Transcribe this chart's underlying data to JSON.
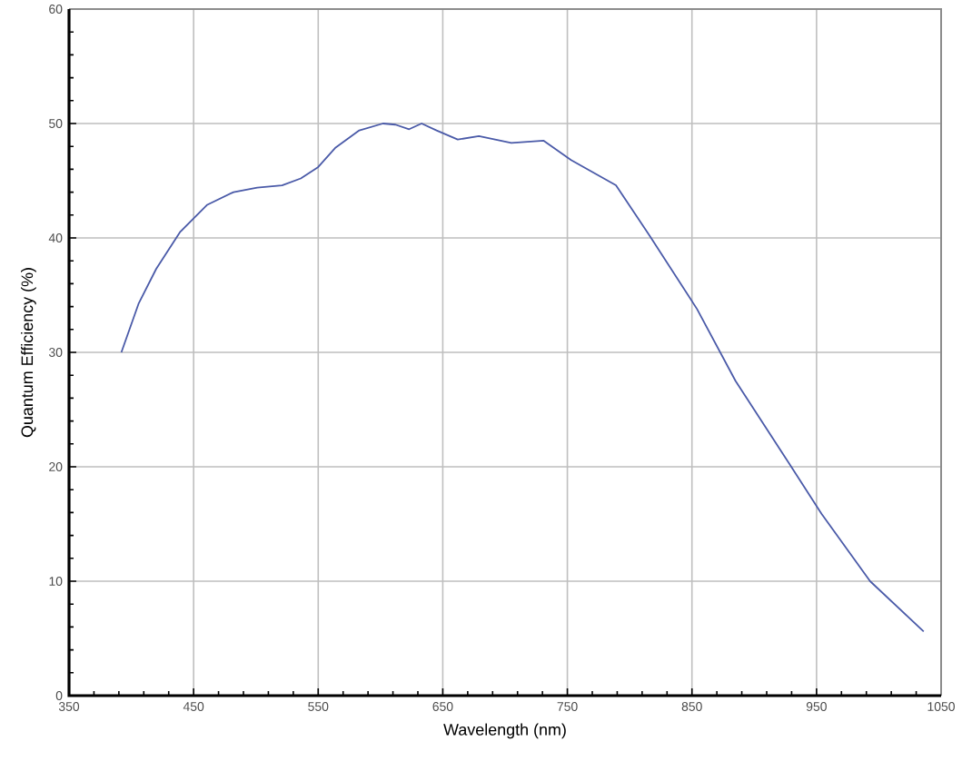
{
  "chart_data": {
    "type": "line",
    "xlabel": "Wavelength (nm)",
    "ylabel": "Quantum Efficiency (%)",
    "x": [
      392,
      406,
      420,
      439,
      461,
      482,
      501,
      521,
      536,
      550,
      564,
      583,
      602,
      612,
      623,
      633,
      645,
      662,
      679,
      705,
      731,
      753,
      789,
      816,
      854,
      885,
      925,
      954,
      993,
      1036
    ],
    "values": [
      30,
      34.3,
      37.3,
      40.5,
      42.9,
      44.0,
      44.4,
      44.6,
      45.2,
      46.2,
      47.9,
      49.4,
      50.0,
      49.9,
      49.5,
      50.0,
      49.4,
      48.6,
      48.9,
      48.3,
      48.5,
      46.8,
      44.6,
      40.2,
      33.8,
      27.5,
      20.8,
      15.9,
      10.0,
      5.6
    ],
    "color": "#4a5aa8",
    "xlim": [
      350,
      1050
    ],
    "xticks": [
      350,
      450,
      550,
      650,
      750,
      850,
      950,
      1050
    ],
    "ylim": [
      0,
      60
    ],
    "yticks": [
      0,
      10,
      20,
      30,
      40,
      50,
      60
    ],
    "grid": true,
    "marker": "none",
    "line_style": "solid"
  }
}
